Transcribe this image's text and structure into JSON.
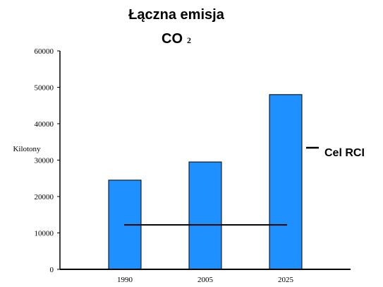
{
  "chart_data": {
    "type": "bar",
    "title": "Łączna emisja",
    "title_line2": "CO",
    "title_subscript": "2",
    "ylabel": "Kilotony",
    "categories": [
      "1990",
      "2005",
      "2025"
    ],
    "values": [
      24500,
      29500,
      48000
    ],
    "ylim": [
      0,
      60000
    ],
    "yticks": [
      "0",
      "10000",
      "20000",
      "30000",
      "40000",
      "50000",
      "60000"
    ],
    "target_line": {
      "name": "Cel RCI",
      "value": 12200,
      "color": "#000000"
    },
    "bar_color": "#1E90FF",
    "grid": false,
    "legend_position": "right"
  }
}
